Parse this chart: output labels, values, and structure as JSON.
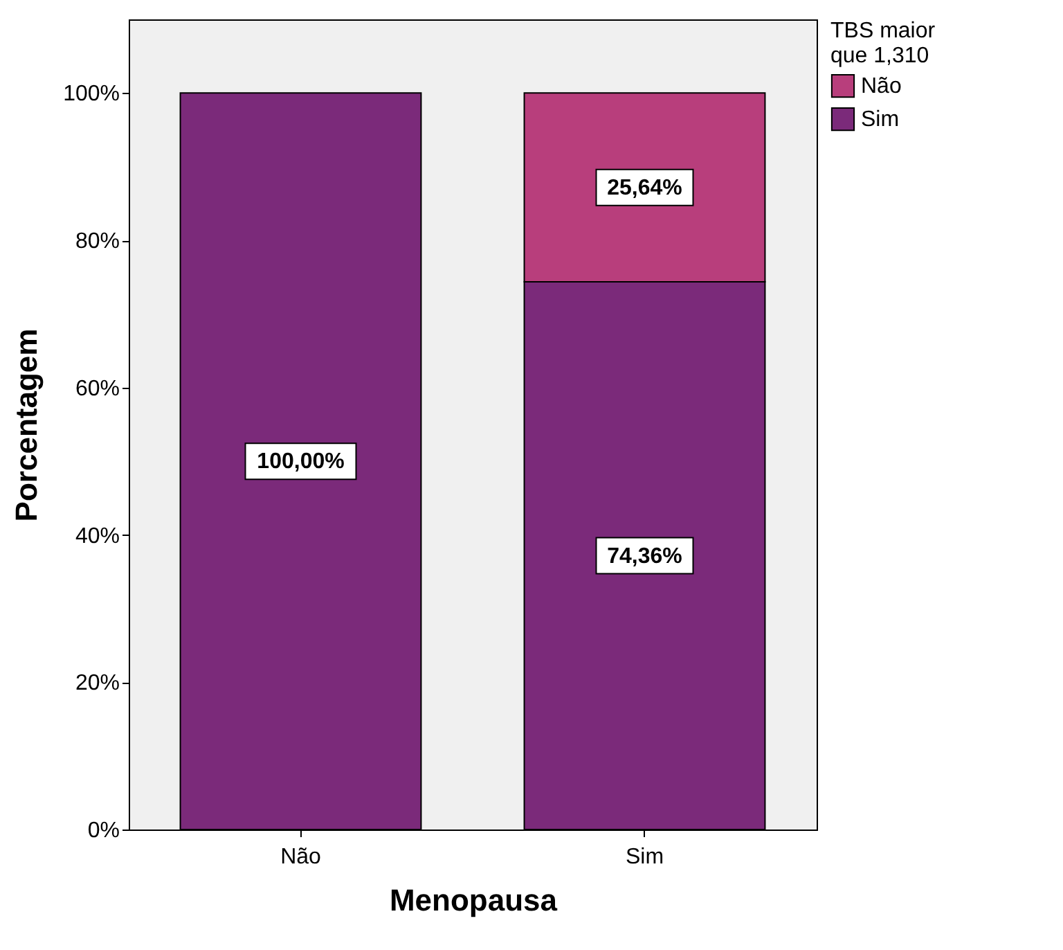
{
  "chart_data": {
    "type": "bar",
    "stacked": true,
    "xlabel": "Menopausa",
    "ylabel": "Porcentagem",
    "legend_title": "TBS maior que 1,310",
    "legend": "top right",
    "grid": false,
    "categories": [
      "Não",
      "Sim"
    ],
    "series": [
      {
        "name": "Sim",
        "color": "#7b2a7a",
        "values": [
          100,
          74.36
        ],
        "value_labels": [
          "100,00%",
          "74,36%"
        ]
      },
      {
        "name": "Não",
        "color": "#b83e7c",
        "values": [
          null,
          25.64
        ],
        "value_labels": [
          null,
          "25,64%"
        ]
      }
    ],
    "ylim": [
      0,
      110
    ],
    "yticks": [
      {
        "value": 0,
        "label": "0%"
      },
      {
        "value": 20,
        "label": "20%"
      },
      {
        "value": 40,
        "label": "40%"
      },
      {
        "value": 60,
        "label": "60%"
      },
      {
        "value": 80,
        "label": "80%"
      },
      {
        "value": 100,
        "label": "100%"
      }
    ]
  }
}
